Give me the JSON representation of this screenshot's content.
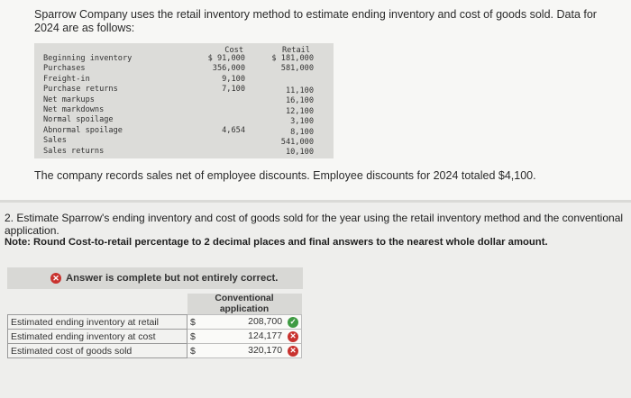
{
  "intro": "Sparrow Company uses the retail inventory method to estimate ending inventory and cost of goods sold. Data for 2024 are as follows:",
  "table": {
    "cost_header": "Cost",
    "retail_header": "Retail",
    "rows": [
      {
        "label": "Beginning inventory",
        "cost": "$ 91,000",
        "retail": "$ 181,000"
      },
      {
        "label": "Purchases",
        "cost": "356,000",
        "retail": "581,000"
      },
      {
        "label": "Freight-in",
        "cost": "9,100",
        "retail": ""
      },
      {
        "label": "Purchase returns",
        "cost": "7,100",
        "retail": "11,100"
      },
      {
        "label": "Net markups",
        "cost": "",
        "retail": "16,100"
      },
      {
        "label": "Net markdowns",
        "cost": "",
        "retail": "12,100"
      },
      {
        "label": "Normal spoilage",
        "cost": "",
        "retail": "3,100"
      },
      {
        "label": "Abnormal spoilage",
        "cost": "4,654",
        "retail": "8,100"
      },
      {
        "label": "Sales",
        "cost": "",
        "retail": "541,000"
      },
      {
        "label": "Sales returns",
        "cost": "",
        "retail": "10,100"
      }
    ]
  },
  "note": "The company records sales net of employee discounts. Employee discounts for 2024 totaled $4,100.",
  "question": "2. Estimate Sparrow's ending inventory and cost of goods sold for the year using the retail inventory method and the conventional application.",
  "question_note": "Note: Round Cost-to-retail percentage to 2 decimal places and final answers to the nearest whole dollar amount.",
  "banner": "Answer is complete but not entirely correct.",
  "answer": {
    "header": "Conventional application",
    "rows": [
      {
        "label": "Estimated ending inventory at retail",
        "currency": "$",
        "value": "208,700",
        "status": "correct"
      },
      {
        "label": "Estimated ending inventory at cost",
        "currency": "$",
        "value": "124,177",
        "status": "incorrect"
      },
      {
        "label": "Estimated cost of goods sold",
        "currency": "$",
        "value": "320,170",
        "status": "incorrect"
      }
    ]
  },
  "colors": {
    "correct": "#3f9b43",
    "incorrect": "#c9322e"
  }
}
